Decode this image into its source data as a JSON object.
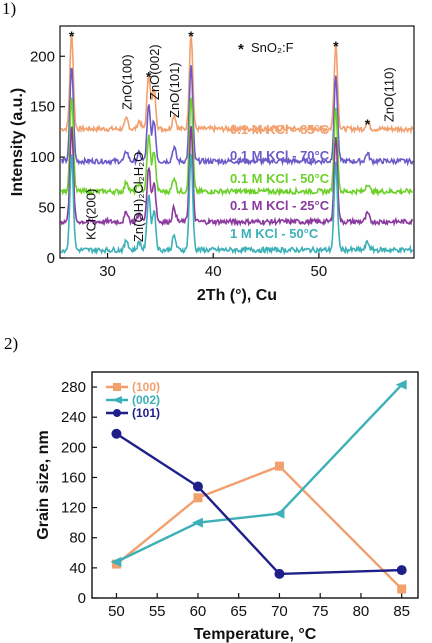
{
  "figure": {
    "panel1_label": "1)",
    "panel2_label": "2)"
  },
  "colors": {
    "orange": "#f2a06e",
    "purple": "#8b3a9e",
    "green": "#6cd12a",
    "purple2": "#6b5bc8",
    "teal": "#3eb0b8",
    "navy": "#1f1f8a"
  },
  "chart_data": [
    {
      "type": "line",
      "xlabel": "2Th (°), Cu",
      "ylabel": "Intensity (a.u.)",
      "xlim": [
        25.5,
        59
      ],
      "ylim": [
        0,
        230
      ],
      "x_ticks": [
        30,
        40,
        50
      ],
      "y_ticks": [
        0,
        50,
        100,
        150,
        200
      ],
      "legend_marker": "*",
      "legend_text": "SnO₂:F",
      "series": [
        {
          "name": "0.1 M KCl - 85°C",
          "baseline": 128,
          "color_key": "orange"
        },
        {
          "name": "0.1 M KCl - 70°C",
          "baseline": 96,
          "color_key": "purple2"
        },
        {
          "name": "0.1 M KCl - 50°C",
          "baseline": 66,
          "color_key": "green"
        },
        {
          "name": "0.1 M KCl - 25°C",
          "baseline": 36,
          "color_key": "purple"
        },
        {
          "name": "1 M KCl - 50°C",
          "baseline": 8,
          "color_key": "teal"
        }
      ],
      "peaks": [
        {
          "x": 26.6,
          "h": 95,
          "star": true
        },
        {
          "x": 31.8,
          "h": 10
        },
        {
          "x": 33.0,
          "h": 8
        },
        {
          "x": 33.9,
          "h": 55,
          "star": true
        },
        {
          "x": 34.4,
          "h": 40
        },
        {
          "x": 36.3,
          "h": 14
        },
        {
          "x": 37.9,
          "h": 95,
          "star": true
        },
        {
          "x": 51.6,
          "h": 85,
          "star": true
        },
        {
          "x": 54.6,
          "h": 8,
          "star": true
        }
      ],
      "annotations": [
        {
          "text": "ZnO(100)",
          "x": 31.8
        },
        {
          "text": "ZnO(002)",
          "x": 34.4
        },
        {
          "text": "ZnO(101)",
          "x": 36.3
        },
        {
          "text": "ZnO(110)",
          "x": 56.6
        },
        {
          "text": "KCl(200)",
          "x": 28.4
        },
        {
          "text": "Zn(OH)₂Cl₂H₂O",
          "x": 32.9
        }
      ]
    },
    {
      "type": "line",
      "xlabel": "Temperature, °C",
      "ylabel": "Grain size, nm",
      "xlim": [
        47,
        87
      ],
      "ylim": [
        0,
        300
      ],
      "x_ticks": [
        50,
        55,
        60,
        65,
        70,
        75,
        80,
        85
      ],
      "y_ticks": [
        0,
        40,
        80,
        120,
        160,
        200,
        240,
        280
      ],
      "x": [
        50,
        60,
        70,
        85
      ],
      "series": [
        {
          "name": "(100)",
          "values": [
            45,
            133,
            175,
            12
          ],
          "color_key": "orange",
          "marker": "square"
        },
        {
          "name": "(002)",
          "values": [
            48,
            100,
            112,
            283
          ],
          "color_key": "teal",
          "marker": "triangle"
        },
        {
          "name": "(101)",
          "values": [
            218,
            148,
            32,
            37
          ],
          "color_key": "navy",
          "marker": "circle"
        }
      ]
    }
  ]
}
